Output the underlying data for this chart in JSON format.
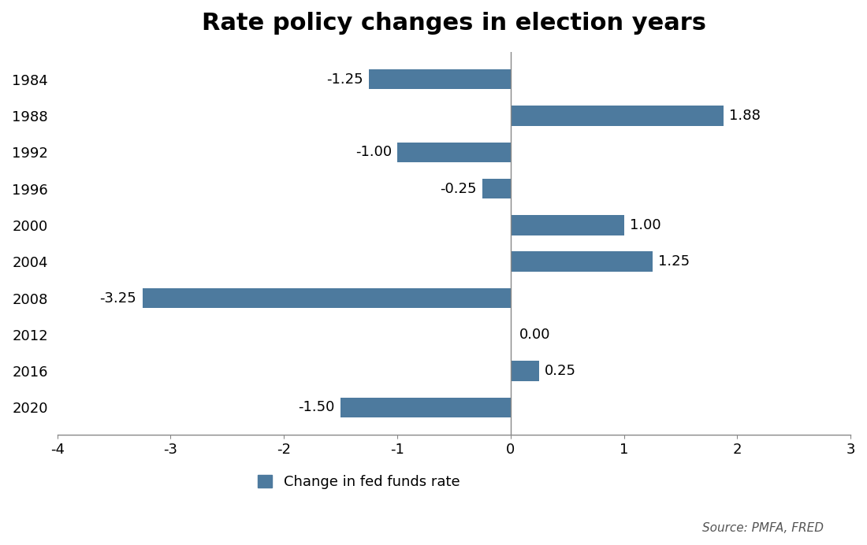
{
  "title": "Rate policy changes in election years",
  "years": [
    "1984",
    "1988",
    "1992",
    "1996",
    "2000",
    "2004",
    "2008",
    "2012",
    "2016",
    "2020"
  ],
  "values": [
    -1.25,
    1.88,
    -1.0,
    -0.25,
    1.0,
    1.25,
    -3.25,
    0.0,
    0.25,
    -1.5
  ],
  "bar_color": "#4d7a9e",
  "xlim": [
    -4,
    3
  ],
  "xticks": [
    -4,
    -3,
    -2,
    -1,
    0,
    1,
    2,
    3
  ],
  "source_text": "Source: PMFA, FRED",
  "title_fontsize": 22,
  "label_fontsize": 13,
  "tick_fontsize": 13,
  "source_fontsize": 11,
  "background_color": "#ffffff",
  "legend_label": "Change in fed funds rate"
}
